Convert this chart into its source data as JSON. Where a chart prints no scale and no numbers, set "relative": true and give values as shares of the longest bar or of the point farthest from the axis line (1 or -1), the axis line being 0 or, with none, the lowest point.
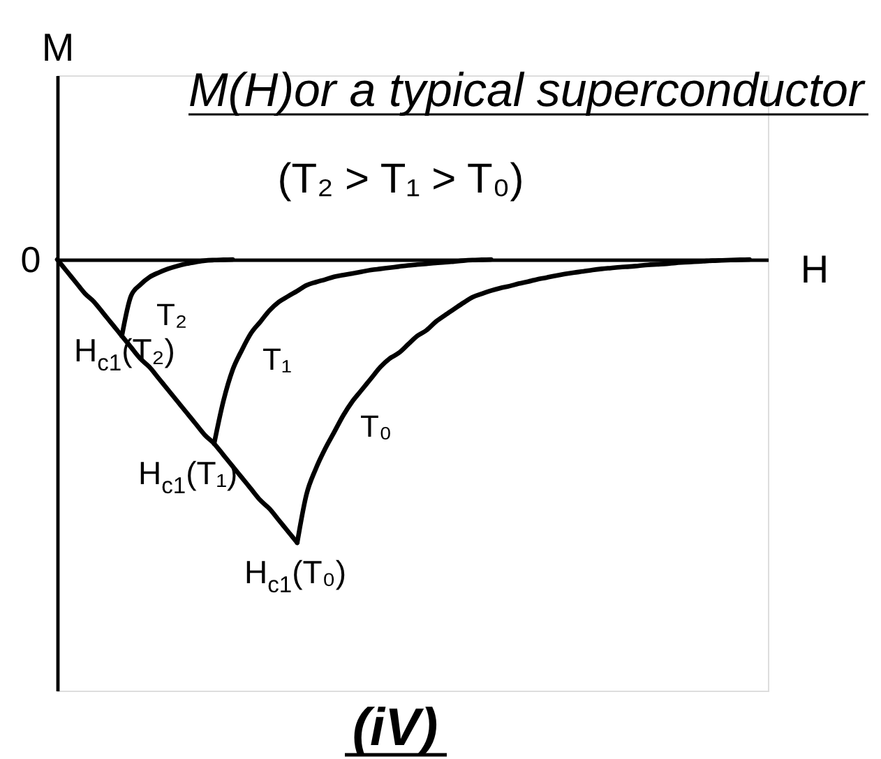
{
  "chart_data": {
    "type": "line",
    "relative": true,
    "title": "M(H)or a typical superconductor",
    "subtitle": "(T₂ > T₁ > T₀)",
    "xlabel": "H",
    "ylabel": "M",
    "categories": [
      null,
      null,
      null,
      null,
      null,
      null,
      null,
      null,
      null,
      null,
      null,
      null,
      null,
      null,
      null,
      null,
      null,
      null,
      null,
      null,
      null,
      null,
      null,
      null,
      null,
      null,
      null,
      null,
      null,
      null,
      null,
      null,
      null,
      null,
      null,
      null,
      null,
      null,
      null,
      null,
      null,
      null,
      null,
      null,
      null,
      null,
      null,
      null,
      null,
      null,
      null,
      null,
      null,
      null,
      null,
      null,
      null,
      null,
      null,
      null,
      null,
      null,
      null,
      null,
      null,
      null,
      null,
      null,
      null,
      null,
      null,
      null,
      null,
      null,
      null,
      null
    ],
    "series": [
      {
        "color": "#000000",
        "values": [
          0,
          -0.04,
          -0.08,
          -0.12,
          -0.15,
          -0.19,
          -0.23,
          -0.27,
          -0.31,
          -0.35,
          -0.38,
          -0.42,
          -0.46,
          -0.5,
          -0.54,
          -0.58,
          -0.62,
          -0.65,
          -0.69,
          -0.73,
          -0.77,
          -0.81,
          -0.85,
          -0.88,
          -0.92,
          -0.96,
          -1,
          null,
          null,
          null,
          null,
          null,
          null,
          null,
          null,
          null,
          null,
          null,
          null,
          null,
          null,
          null,
          null,
          null,
          null,
          null,
          null,
          null,
          null,
          null,
          null,
          null,
          null,
          null,
          null,
          null,
          null,
          null,
          null,
          null,
          null,
          null,
          null,
          null,
          null,
          null,
          null,
          null,
          null,
          null,
          null,
          null,
          null,
          null,
          null,
          null
        ]
      },
      {
        "name": "T₂",
        "color": "#000000",
        "values": [
          null,
          null,
          null,
          null,
          null,
          null,
          null,
          -0.27,
          -0.128,
          -0.089,
          -0.062,
          -0.046,
          -0.033,
          -0.023,
          -0.015,
          -0.009,
          -0.004,
          -0.002,
          -0.001,
          0,
          null,
          null,
          null,
          null,
          null,
          null,
          null,
          null,
          null,
          null,
          null,
          null,
          null,
          null,
          null,
          null,
          null,
          null,
          null,
          null,
          null,
          null,
          null,
          null,
          null,
          null,
          null,
          null,
          null,
          null,
          null,
          null,
          null,
          null,
          null,
          null,
          null,
          null,
          null,
          null,
          null,
          null,
          null,
          null,
          null,
          null,
          null,
          null,
          null,
          null,
          null,
          null,
          null,
          null,
          null,
          null
        ]
      },
      {
        "name": "T₁",
        "color": "#000000",
        "values": [
          null,
          null,
          null,
          null,
          null,
          null,
          null,
          null,
          null,
          null,
          null,
          null,
          null,
          null,
          null,
          null,
          null,
          -0.65,
          -0.5,
          -0.39,
          -0.32,
          -0.26,
          -0.22,
          -0.18,
          -0.15,
          -0.13,
          -0.111,
          -0.091,
          -0.08,
          -0.071,
          -0.061,
          -0.055,
          -0.049,
          -0.043,
          -0.037,
          -0.033,
          -0.029,
          -0.025,
          -0.021,
          -0.018,
          -0.015,
          -0.012,
          -0.01,
          -0.007,
          -0.004,
          -0.002,
          -0.001,
          0,
          null,
          null,
          null,
          null,
          null,
          null,
          null,
          null,
          null,
          null,
          null,
          null,
          null,
          null,
          null,
          null,
          null,
          null,
          null,
          null,
          null,
          null,
          null,
          null,
          null,
          null,
          null,
          null
        ]
      },
      {
        "name": "T₀",
        "color": "#000000",
        "values": [
          null,
          null,
          null,
          null,
          null,
          null,
          null,
          null,
          null,
          null,
          null,
          null,
          null,
          null,
          null,
          null,
          null,
          null,
          null,
          null,
          null,
          null,
          null,
          null,
          null,
          null,
          -1,
          -0.83,
          -0.74,
          -0.67,
          -0.61,
          -0.55,
          -0.5,
          -0.46,
          -0.42,
          -0.38,
          -0.35,
          -0.33,
          -0.3,
          -0.27,
          -0.25,
          -0.22,
          -0.197,
          -0.175,
          -0.153,
          -0.133,
          -0.121,
          -0.11,
          -0.101,
          -0.094,
          -0.085,
          -0.078,
          -0.07,
          -0.064,
          -0.057,
          -0.051,
          -0.046,
          -0.042,
          -0.037,
          -0.033,
          -0.03,
          -0.027,
          -0.025,
          -0.022,
          -0.019,
          -0.017,
          -0.015,
          -0.012,
          -0.01,
          -0.008,
          -0.006,
          -0.004,
          -0.003,
          -0.002,
          -0.001,
          0
        ]
      }
    ],
    "annotations": [
      "0",
      {
        "text": "H$_{c1}$(T₂)",
        "y": -0.27
      },
      "H$_{c1}$(T₁)",
      {
        "text": "H$_{c1}$(T₀)",
        "y": -1
      },
      "(iV)"
    ]
  }
}
